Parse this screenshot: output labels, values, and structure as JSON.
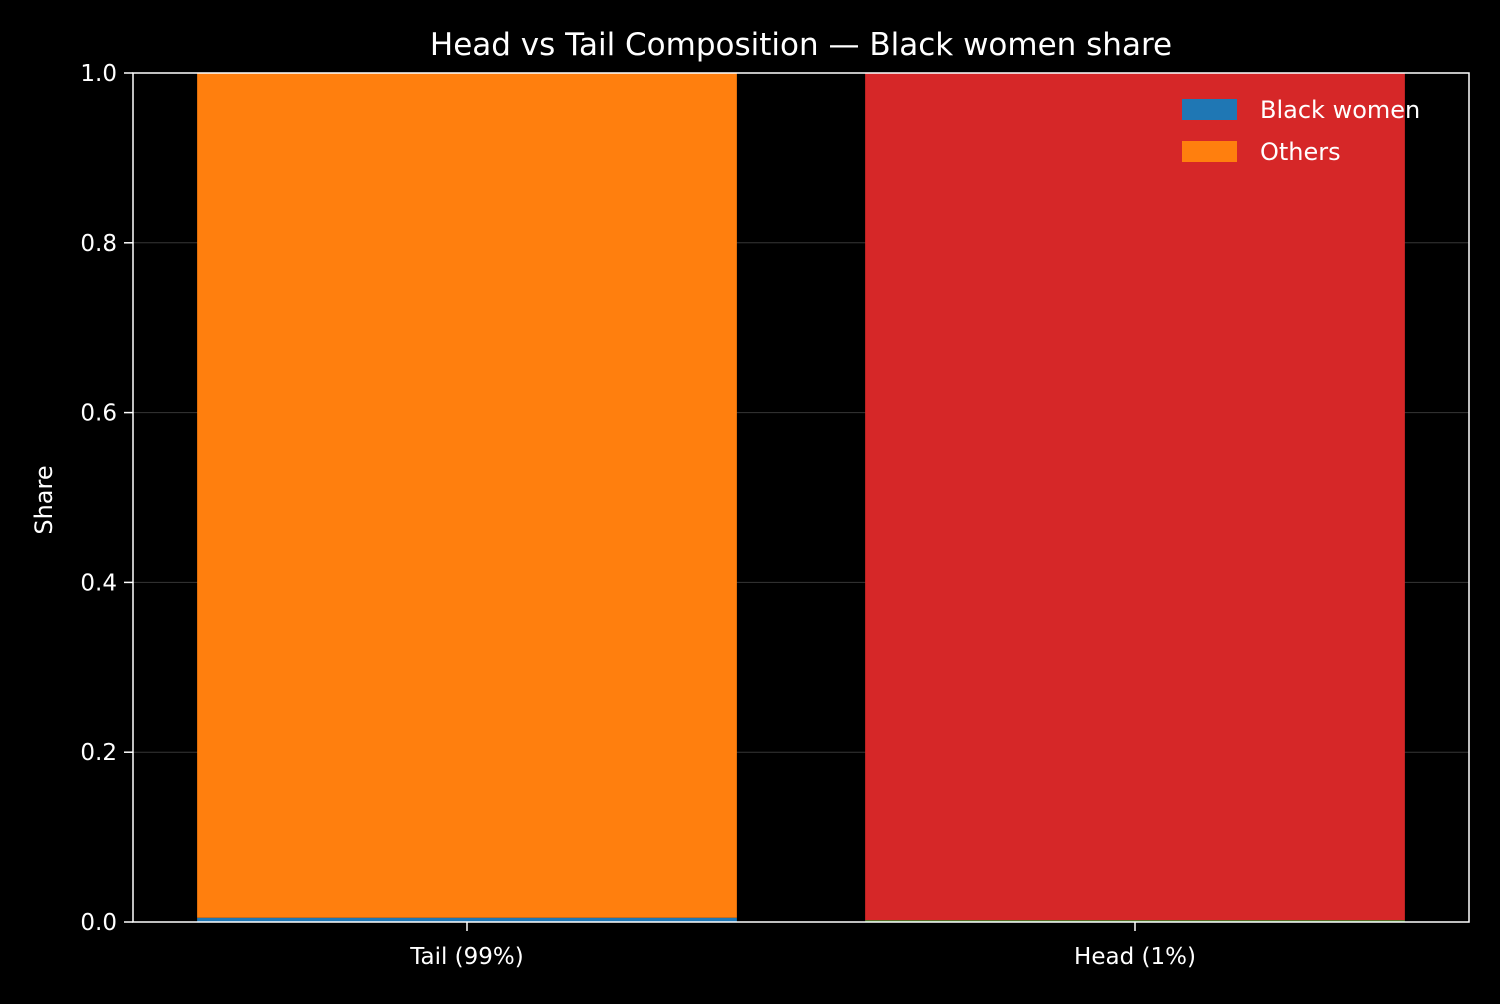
{
  "chart_data": {
    "type": "bar",
    "stacked": true,
    "title": "Head vs Tail Composition — Black women share",
    "xlabel": "",
    "ylabel": "Share",
    "ylim": [
      0,
      1
    ],
    "yticks": [
      0,
      0.2,
      0.4,
      0.6,
      0.8,
      1
    ],
    "ytick_labels": [
      "0.0",
      "0.2",
      "0.4",
      "0.6",
      "0.8",
      "1.0"
    ],
    "categories": [
      "Tail (99%)",
      "Head (1%)"
    ],
    "bars": [
      {
        "category": "Tail (99%)",
        "segments": [
          {
            "label": "Black women",
            "value": 0.005,
            "color": "#1f77b4"
          },
          {
            "label": "Others",
            "value": 0.995,
            "color": "#ff7f0e"
          }
        ]
      },
      {
        "category": "Head (1%)",
        "segments": [
          {
            "label": "Black women",
            "value": 0.002,
            "color": "#2ca02c"
          },
          {
            "label": "Others",
            "value": 0.998,
            "color": "#d62728"
          }
        ]
      }
    ],
    "legend": {
      "position": "top-right",
      "entries": [
        {
          "label": "Black women",
          "color": "#1f77b4"
        },
        {
          "label": "Others",
          "color": "#ff7f0e"
        }
      ]
    },
    "grid": {
      "y": true,
      "x": false
    },
    "colors": {
      "background": "#000000",
      "axes": "#ffffff",
      "text": "#ffffff",
      "grid": "#444444"
    }
  }
}
